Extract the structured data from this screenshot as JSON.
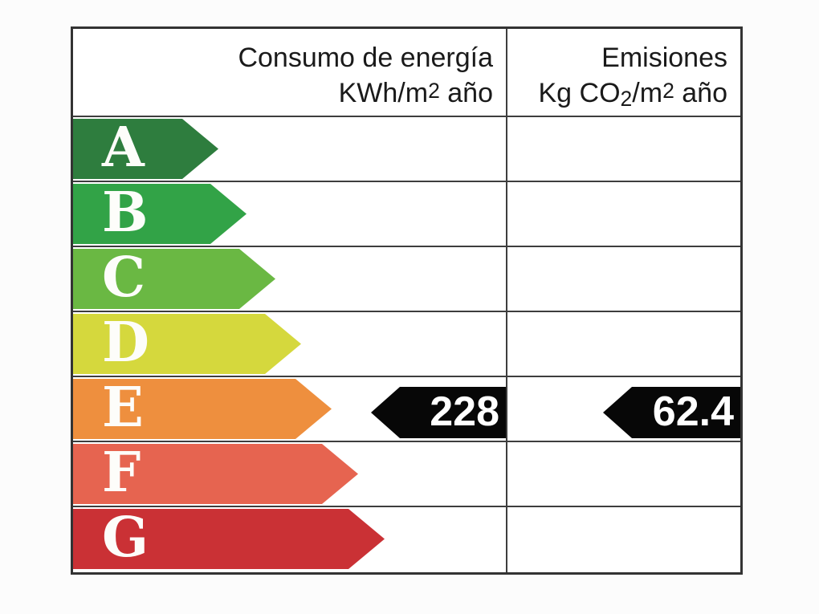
{
  "table": {
    "header": {
      "consumption": {
        "line1": "Consumo de energía",
        "line2": {
          "pre": "KWh/m",
          "sup": "2",
          "post": " año"
        }
      },
      "emissions": {
        "line1": "Emisiones",
        "line2": {
          "p1": "Kg CO",
          "sub": "2",
          "p2": "/m",
          "sup": "2",
          "p3": " año"
        }
      }
    },
    "ratings": [
      {
        "letter": "A",
        "color": "#2e7d3e"
      },
      {
        "letter": "B",
        "color": "#32a347"
      },
      {
        "letter": "C",
        "color": "#6ab843"
      },
      {
        "letter": "D",
        "color": "#d5d83d"
      },
      {
        "letter": "E",
        "color": "#ee8f3e"
      },
      {
        "letter": "F",
        "color": "#e66450"
      },
      {
        "letter": "G",
        "color": "#ca3135"
      }
    ],
    "indicator": {
      "rating": "E",
      "consumption_value": "228",
      "emissions_value": "62.4",
      "arrow_color": "#070707",
      "text_color": "#ffffff"
    }
  },
  "chart_data": {
    "type": "bar",
    "columns": [
      "Consumo de energía KWh/m2 año",
      "Emisiones Kg CO2/m2 año"
    ],
    "categories": [
      "A",
      "B",
      "C",
      "D",
      "E",
      "F",
      "G"
    ],
    "category_colors": [
      "#2e7d3e",
      "#32a347",
      "#6ab843",
      "#d5d83d",
      "#ee8f3e",
      "#e66450",
      "#ca3135"
    ],
    "selected_rating": "E",
    "values": {
      "consumo_kwh_m2_ano": 228,
      "emisiones_kg_co2_m2_ano": 62.4
    }
  }
}
